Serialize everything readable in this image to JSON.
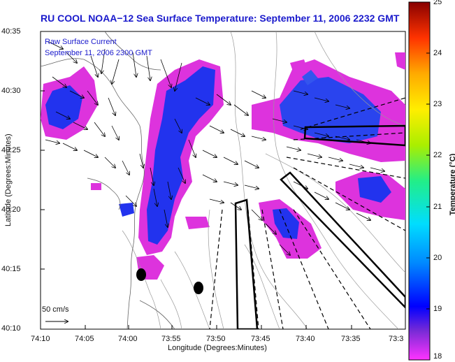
{
  "title": "RU COOL  NOAA−12  Sea Surface Temperature:  September 11, 2006 2232 GMT",
  "legend": {
    "line1": "Raw Surface Current",
    "line2": "September 11, 2006 2300 GMT"
  },
  "axes": {
    "xlabel": "Longitude (Degrees:Minutes)",
    "ylabel": "Latitude (Degrees:Minutes)",
    "xticks": [
      "74:10",
      "74:05",
      "74:00",
      "73:55",
      "73:50",
      "73:45",
      "73:40",
      "73:35",
      "73:3"
    ],
    "yticks": [
      "40:35",
      "40:30",
      "40:25",
      "40:20",
      "40:15",
      "40:10"
    ]
  },
  "colorbar": {
    "label": "Temperature (°C)",
    "min": 18,
    "max": 25,
    "ticks": [
      "25",
      "24",
      "23",
      "22",
      "21",
      "20",
      "19",
      "18"
    ]
  },
  "scale": {
    "label": "50 cm/s"
  },
  "colors": {
    "title": "#1a1acc",
    "land": "#ffffff",
    "sst_cold": "#cc22cc",
    "sst_warm": "#2233ee"
  }
}
